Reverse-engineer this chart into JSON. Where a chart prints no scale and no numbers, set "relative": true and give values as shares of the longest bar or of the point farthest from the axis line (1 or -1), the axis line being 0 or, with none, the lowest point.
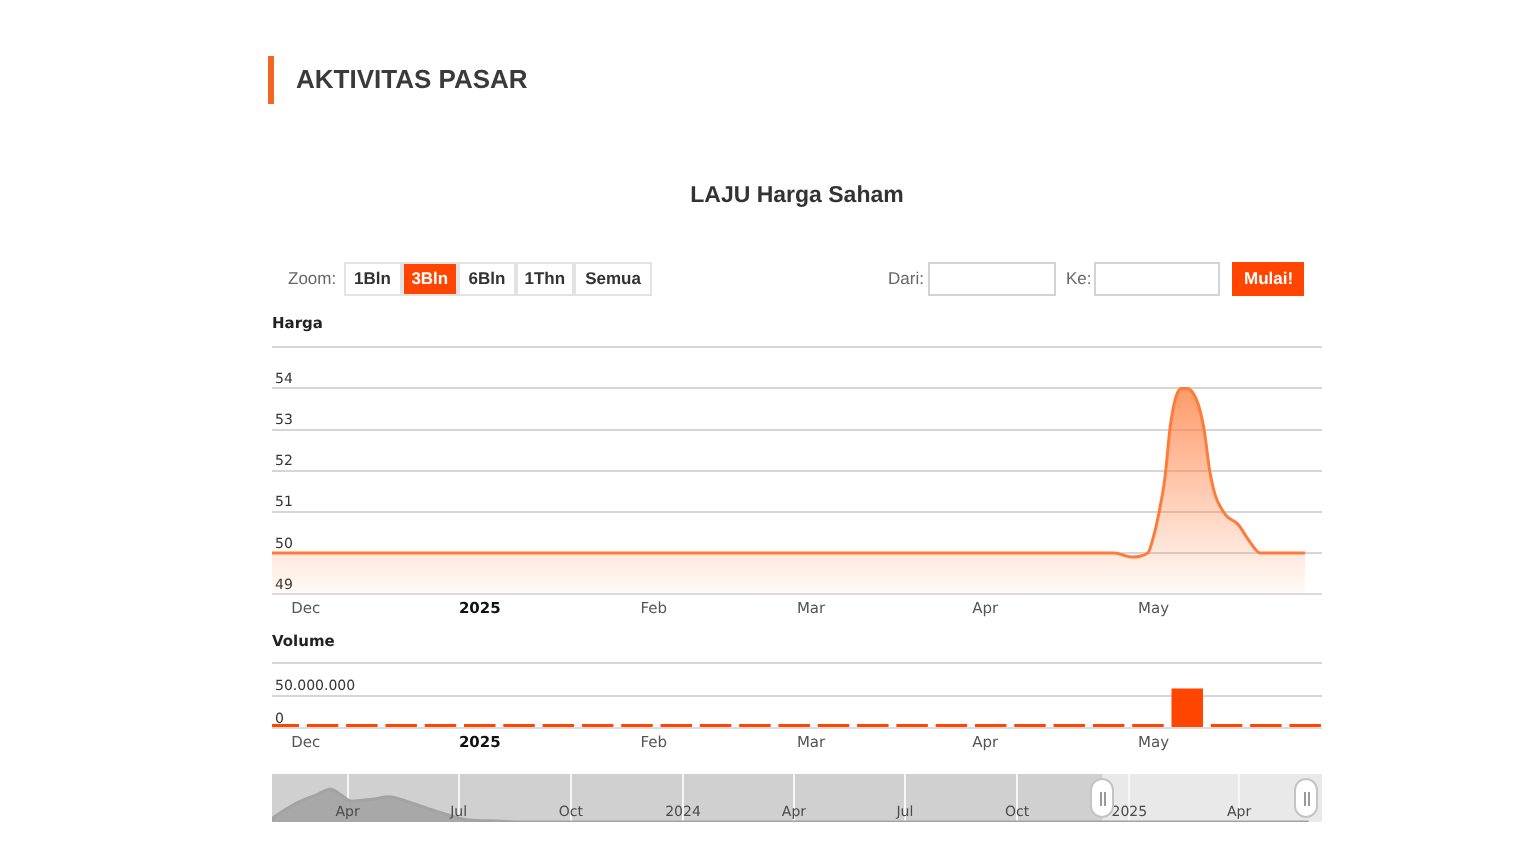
{
  "chart_data": [
    {
      "type": "area",
      "title": "AKTIVITAS PASAR",
      "subtitle": "LAJU Harga Saham",
      "ylabel": "Harga",
      "annotations": [
        "Zoom:",
        "1Bln",
        "3Bln",
        "6Bln",
        "1Thn",
        "Semua",
        "Dari:",
        "Ke:",
        "Mulai!"
      ],
      "x": [
        "2024-11-25",
        "2025-04-24",
        "2025-04-27",
        "2025-04-30",
        "2025-05-01",
        "2025-05-02",
        "2025-05-03",
        "2025-05-04",
        "2025-05-05",
        "2025-05-06",
        "2025-05-07",
        "2025-05-08",
        "2025-05-09",
        "2025-05-10",
        "2025-05-11",
        "2025-05-12",
        "2025-05-13",
        "2025-05-14",
        "2025-05-16",
        "2025-05-18",
        "2025-05-20",
        "2025-05-28"
      ],
      "values": [
        50,
        50,
        49.9,
        50,
        50.4,
        51,
        51.8,
        53.1,
        53.8,
        54,
        54,
        53.9,
        53.6,
        53,
        52,
        51.4,
        51.1,
        50.9,
        50.7,
        50.3,
        50,
        50
      ],
      "color": "#ff7b3a",
      "xlim": [
        "2024-11-25",
        "2025-05-31"
      ],
      "xticks": [
        {
          "value": "2024-12-01",
          "label": "Dec"
        },
        {
          "value": "2025-01-01",
          "label": "2025"
        },
        {
          "value": "2025-02-01",
          "label": "Feb"
        },
        {
          "value": "2025-03-01",
          "label": "Mar"
        },
        {
          "value": "2025-04-01",
          "label": "Apr"
        },
        {
          "value": "2025-05-01",
          "label": "May"
        }
      ],
      "ylim": [
        49,
        55
      ],
      "yticks": [
        49,
        50,
        51,
        52,
        53,
        54,
        {
          "value": 55,
          "label": null
        }
      ],
      "grid": "y"
    },
    {
      "type": "bar",
      "ylabel": "Volume",
      "x": [
        "2024-11-27",
        "2024-12-04",
        "2024-12-11",
        "2024-12-18",
        "2024-12-25",
        "2025-01-01",
        "2025-01-08",
        "2025-01-15",
        "2025-01-22",
        "2025-01-29",
        "2025-02-05",
        "2025-02-12",
        "2025-02-19",
        "2025-02-26",
        "2025-03-05",
        "2025-03-12",
        "2025-03-19",
        "2025-03-26",
        "2025-04-02",
        "2025-04-09",
        "2025-04-16",
        "2025-04-23",
        "2025-04-30",
        "2025-05-07",
        "2025-05-14",
        "2025-05-21",
        "2025-05-28"
      ],
      "values": [
        0,
        0,
        0,
        0,
        0,
        0,
        0,
        0,
        0,
        0,
        0,
        0,
        0,
        0,
        0,
        0,
        0,
        0,
        0,
        0,
        0,
        0,
        0,
        61000000,
        0,
        0,
        0
      ],
      "color": "#ff4500",
      "xlim": [
        "2024-11-25",
        "2025-05-31"
      ],
      "xticks": [
        {
          "value": "2024-12-01",
          "label": "Dec"
        },
        {
          "value": "2025-01-01",
          "label": "2025"
        },
        {
          "value": "2025-02-01",
          "label": "Feb"
        },
        {
          "value": "2025-03-01",
          "label": "Mar"
        },
        {
          "value": "2025-04-01",
          "label": "Apr"
        },
        {
          "value": "2025-05-01",
          "label": "May"
        }
      ],
      "ylim": [
        0,
        100000000
      ],
      "yticks": [
        0,
        {
          "value": 50000000,
          "label": "50.000.000"
        },
        {
          "value": 100000000,
          "label": null
        }
      ],
      "grid": "y"
    },
    {
      "type": "area",
      "relative": true,
      "x": [
        "2023-01-29",
        "2023-02-01",
        "2023-02-17",
        "2023-03-07",
        "2023-03-18",
        "2023-03-26",
        "2023-04-04",
        "2023-04-21",
        "2023-05-05",
        "2023-05-19",
        "2023-06-05",
        "2023-06-22",
        "2023-07-09",
        "2023-08-01",
        "2023-08-20",
        "2025-05-28"
      ],
      "values": [
        0.1,
        0.18,
        0.55,
        0.83,
        1,
        0.83,
        0.63,
        0.69,
        0.76,
        0.63,
        0.42,
        0.22,
        0.06,
        0.03,
        0,
        0
      ],
      "color": "#a3a3a3",
      "xlim": [
        "2023-01-29",
        "2025-06-08"
      ],
      "xticks": [
        {
          "value": "2023-04-01",
          "label": "Apr"
        },
        {
          "value": "2023-07-01",
          "label": "Jul"
        },
        {
          "value": "2023-10-01",
          "label": "Oct"
        },
        {
          "value": "2024-01-01",
          "label": "2024"
        },
        {
          "value": "2024-04-01",
          "label": "Apr"
        },
        {
          "value": "2024-07-01",
          "label": "Jul"
        },
        {
          "value": "2024-10-01",
          "label": "Oct"
        },
        {
          "value": "2025-01-01",
          "label": "2025"
        },
        {
          "value": "2025-04-01",
          "label": "Apr"
        }
      ],
      "bands": [
        {
          "axis": "x",
          "from": "2023-01-29",
          "to": "2024-12-10",
          "color": "#d0d0d0"
        }
      ],
      "grid": "x"
    }
  ]
}
